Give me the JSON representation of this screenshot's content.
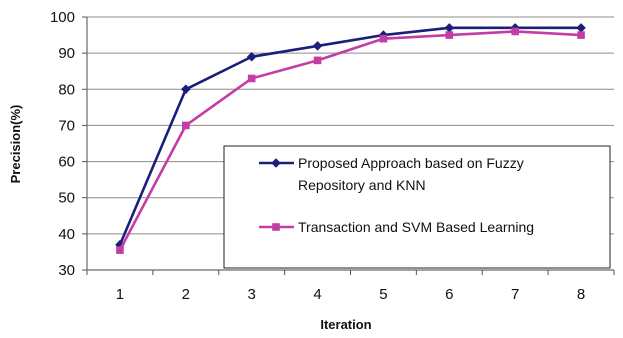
{
  "chart_data": {
    "type": "line",
    "title": "",
    "xlabel": "Iteration",
    "ylabel": "Precision(%)",
    "x": [
      1,
      2,
      3,
      4,
      5,
      6,
      7,
      8
    ],
    "ylim": [
      30,
      100
    ],
    "yticks": [
      30,
      40,
      50,
      60,
      70,
      80,
      90,
      100
    ],
    "grid": true,
    "legend_position": "lower-right",
    "series": [
      {
        "name": "Proposed Approach based on Fuzzy Repository and KNN",
        "legend_lines": [
          "Proposed Approach based on Fuzzy",
          "Repository and KNN"
        ],
        "values": [
          37,
          80,
          89,
          92,
          95,
          97,
          97,
          97
        ],
        "color": "#1b1f7a",
        "marker": "diamond"
      },
      {
        "name": "Transaction and SVM Based Learning",
        "legend_lines": [
          "Transaction and SVM Based Learning"
        ],
        "values": [
          35.5,
          70,
          83,
          88,
          94,
          95,
          96,
          95
        ],
        "color": "#c43ca6",
        "marker": "square"
      }
    ]
  }
}
